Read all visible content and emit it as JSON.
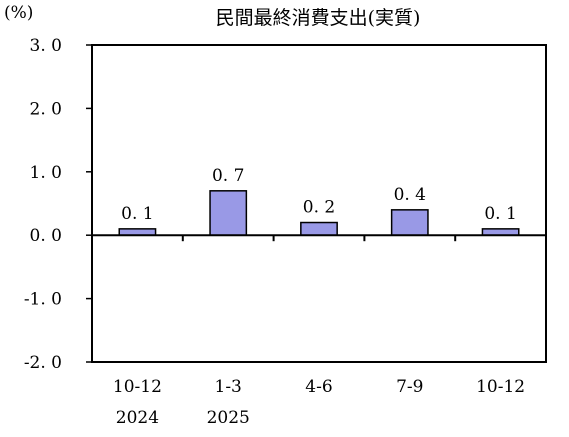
{
  "chart_data": {
    "type": "bar",
    "title": "民間最終消費支出(実質)",
    "ylabel": "(%)",
    "ylim": [
      -2.0,
      3.0
    ],
    "yticks": [
      "3. 0",
      "2. 0",
      "1. 0",
      "0. 0",
      "-1. 0",
      "-2. 0"
    ],
    "ytick_values": [
      3.0,
      2.0,
      1.0,
      0.0,
      -1.0,
      -2.0
    ],
    "categories": [
      "10-12",
      "1-3",
      "4-6",
      "7-9",
      "10-12"
    ],
    "year_labels": [
      "2024",
      "2025",
      "",
      "",
      ""
    ],
    "values": [
      0.1,
      0.7,
      0.2,
      0.4,
      0.1
    ],
    "value_labels": [
      "0. 1",
      "0. 7",
      "0. 2",
      "0. 4",
      "0. 1"
    ],
    "bar_color": "#9999e6",
    "grid": false
  }
}
